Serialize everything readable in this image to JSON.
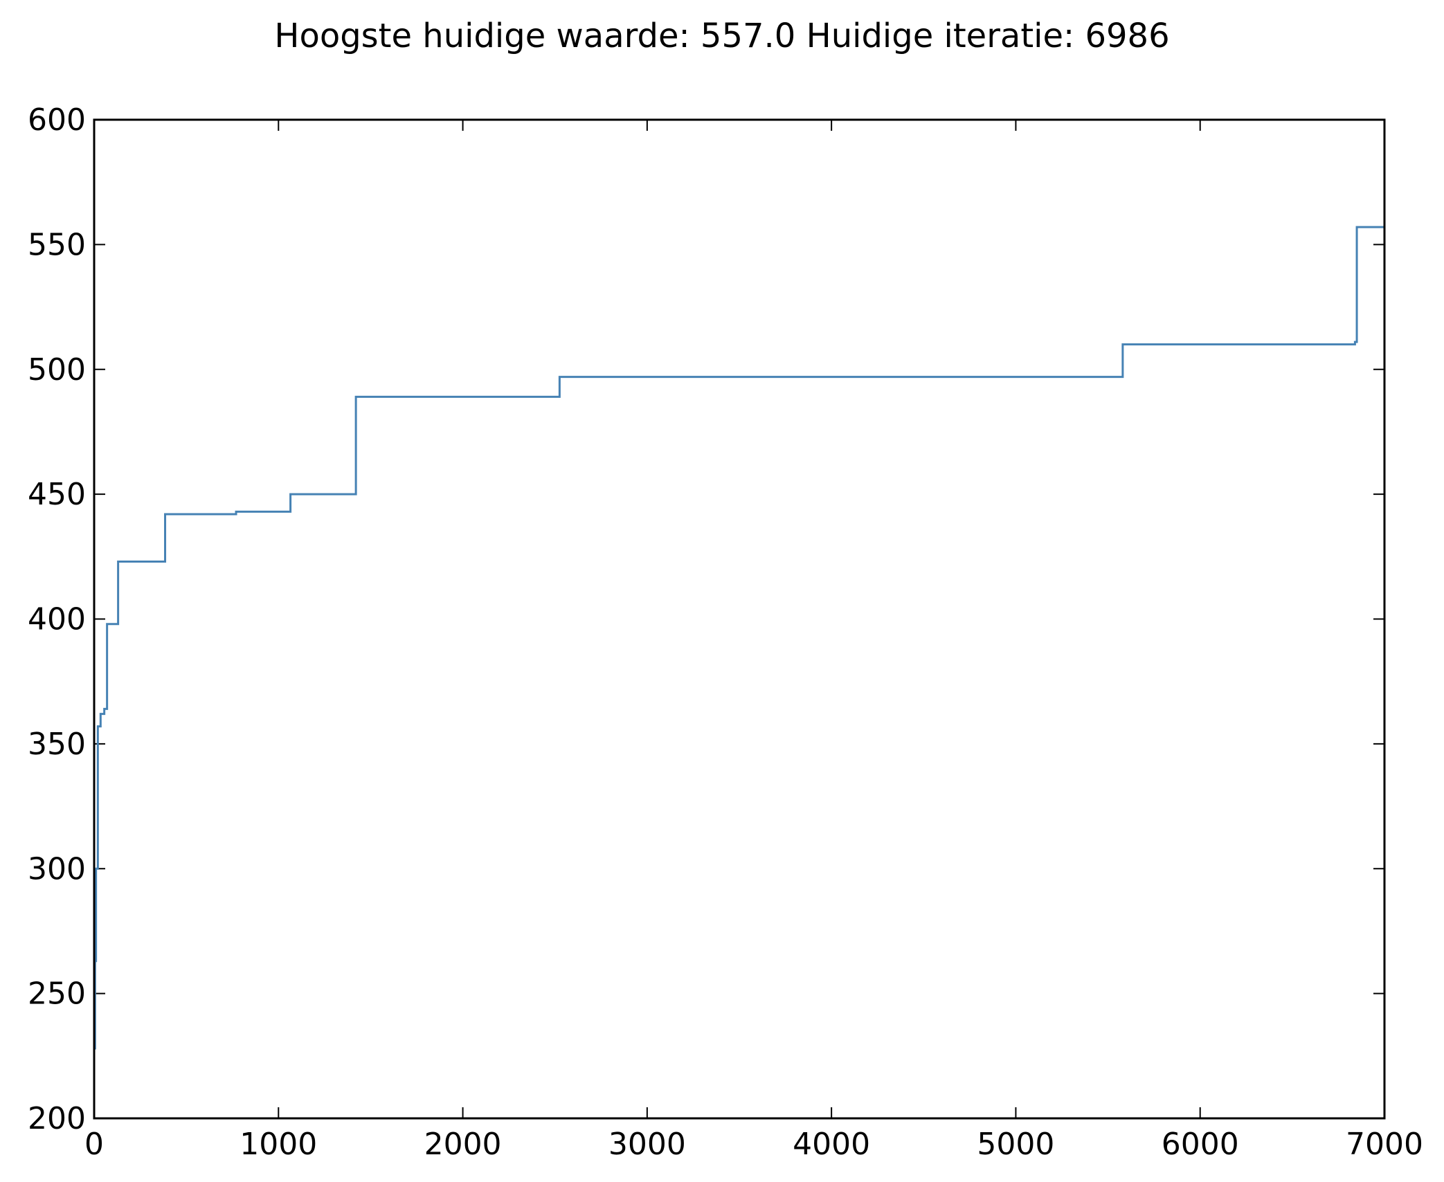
{
  "chart_data": {
    "type": "line",
    "title": "Hoogste huidige waarde: 557.0 Huidige iteratie: 6986",
    "xlabel": "",
    "ylabel": "",
    "xlim": [
      0,
      7000
    ],
    "ylim": [
      200,
      600
    ],
    "xticks": [
      0,
      1000,
      2000,
      3000,
      4000,
      5000,
      6000,
      7000
    ],
    "yticks": [
      200,
      250,
      300,
      350,
      400,
      450,
      500,
      550,
      600
    ],
    "grid": false,
    "legend": "none",
    "colors": {
      "line": "#4682b4",
      "axes": "#000000",
      "background": "#ffffff"
    },
    "series": [
      {
        "step": "post",
        "x": [
          0,
          5,
          10,
          20,
          35,
          55,
          70,
          130,
          385,
          770,
          1065,
          1420,
          2525,
          5580,
          6840,
          6850,
          6986
        ],
        "y": [
          228,
          263,
          300,
          357,
          362,
          364,
          398,
          423,
          442,
          443,
          450,
          489,
          497,
          510,
          511,
          557,
          557
        ]
      }
    ]
  }
}
